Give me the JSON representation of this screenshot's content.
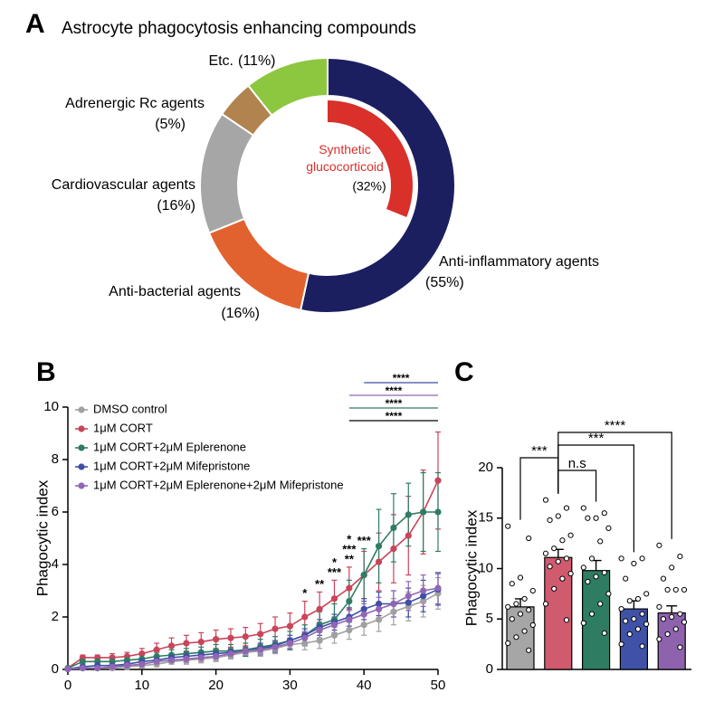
{
  "chart_data": [
    {
      "type": "donut",
      "panel": "A",
      "title": "Astrocyte phagocytosis enhancing compounds",
      "categories": [
        "Anti-inflammatory agents",
        "Anti-bacterial agents",
        "Cardiovascular agents",
        "Adrenergic Rc agents",
        "Etc."
      ],
      "values": [
        55,
        16,
        16,
        5,
        11
      ],
      "value_labels": [
        "(55%)",
        "(16%)",
        "(16%)",
        "(5%)",
        "(11%)"
      ],
      "colors": [
        "#1b1f5f",
        "#e2622f",
        "#a6a6a6",
        "#b0834f",
        "#8dc63f"
      ],
      "label_colors": [
        "#1b1f5f",
        "#e0502f",
        "#000000",
        "#7a4f22",
        "#2f9e55"
      ],
      "inner": {
        "categories": [
          "Synthetic glucocorticoid"
        ],
        "values": [
          32
        ],
        "value_labels": [
          "(32%)"
        ],
        "colors": [
          "#d9302a"
        ]
      }
    },
    {
      "type": "line",
      "panel": "B",
      "y_label": "Phagocytic index",
      "x": [
        0,
        2,
        4,
        6,
        8,
        10,
        12,
        14,
        16,
        18,
        20,
        22,
        24,
        26,
        28,
        30,
        32,
        34,
        36,
        38,
        40,
        42,
        44,
        46,
        48,
        50
      ],
      "series": [
        {
          "name": "DMSO control",
          "color": "#a0a0a0",
          "values": [
            0.02,
            0.05,
            0.05,
            0.05,
            0.1,
            0.15,
            0.2,
            0.3,
            0.35,
            0.4,
            0.45,
            0.55,
            0.65,
            0.7,
            0.8,
            0.95,
            1.0,
            1.1,
            1.3,
            1.5,
            1.7,
            1.9,
            2.2,
            2.4,
            2.6,
            2.9
          ],
          "errors": [
            0.02,
            0.05,
            0.05,
            0.05,
            0.1,
            0.1,
            0.1,
            0.1,
            0.15,
            0.15,
            0.15,
            0.15,
            0.15,
            0.2,
            0.2,
            0.2,
            0.25,
            0.3,
            0.3,
            0.35,
            0.4,
            0.45,
            0.5,
            0.55,
            0.6,
            0.6
          ]
        },
        {
          "name": "1μM CORT",
          "color": "#c8455a",
          "values": [
            0.05,
            0.45,
            0.45,
            0.45,
            0.5,
            0.6,
            0.75,
            0.9,
            1.0,
            1.05,
            1.15,
            1.2,
            1.25,
            1.35,
            1.55,
            1.65,
            2.0,
            2.3,
            2.7,
            3.1,
            3.6,
            4.1,
            4.6,
            5.1,
            6.0,
            7.2
          ],
          "errors": [
            0.05,
            0.1,
            0.1,
            0.15,
            0.15,
            0.2,
            0.25,
            0.3,
            0.3,
            0.35,
            0.35,
            0.35,
            0.35,
            0.4,
            0.45,
            0.5,
            0.6,
            0.65,
            0.7,
            0.8,
            0.9,
            1.1,
            1.3,
            1.5,
            1.6,
            1.85
          ]
        },
        {
          "name": "1μM CORT+2μM Eplerenone",
          "color": "#2e7d63",
          "values": [
            0.05,
            0.3,
            0.3,
            0.3,
            0.35,
            0.4,
            0.5,
            0.55,
            0.6,
            0.65,
            0.7,
            0.7,
            0.75,
            0.85,
            0.95,
            1.1,
            1.3,
            1.7,
            1.9,
            2.6,
            3.6,
            4.7,
            5.4,
            5.9,
            6.0,
            6.0
          ],
          "errors": [
            0.05,
            0.1,
            0.1,
            0.1,
            0.15,
            0.15,
            0.15,
            0.2,
            0.2,
            0.2,
            0.25,
            0.25,
            0.25,
            0.3,
            0.3,
            0.35,
            0.4,
            0.5,
            0.6,
            0.8,
            1.0,
            1.4,
            1.3,
            1.2,
            1.5,
            1.5
          ]
        },
        {
          "name": "1μM CORT+2μM Mifepristone",
          "color": "#3f4fa6",
          "values": [
            0.02,
            0.1,
            0.15,
            0.15,
            0.2,
            0.3,
            0.35,
            0.45,
            0.5,
            0.55,
            0.6,
            0.65,
            0.7,
            0.8,
            0.9,
            1.1,
            1.3,
            1.6,
            1.8,
            2.0,
            2.3,
            2.5,
            2.5,
            2.55,
            2.8,
            3.05
          ],
          "errors": [
            0.02,
            0.05,
            0.05,
            0.05,
            0.1,
            0.1,
            0.1,
            0.1,
            0.15,
            0.15,
            0.15,
            0.15,
            0.15,
            0.2,
            0.2,
            0.2,
            0.25,
            0.3,
            0.3,
            0.35,
            0.4,
            0.45,
            0.5,
            0.55,
            0.6,
            0.6
          ]
        },
        {
          "name": "1μM CORT+2μM Eplerenone+2μM Mifepristone",
          "color": "#9066b5",
          "values": [
            0.02,
            0.05,
            0.05,
            0.1,
            0.15,
            0.2,
            0.3,
            0.35,
            0.4,
            0.45,
            0.5,
            0.6,
            0.7,
            0.75,
            0.85,
            1.0,
            1.2,
            1.5,
            1.7,
            1.9,
            2.1,
            2.3,
            2.5,
            2.8,
            3.0,
            3.1
          ],
          "errors": [
            0.02,
            0.05,
            0.05,
            0.05,
            0.1,
            0.1,
            0.1,
            0.1,
            0.15,
            0.15,
            0.15,
            0.15,
            0.15,
            0.2,
            0.2,
            0.2,
            0.25,
            0.3,
            0.3,
            0.35,
            0.4,
            0.45,
            0.5,
            0.55,
            0.6,
            0.6
          ]
        }
      ],
      "xlim": [
        0,
        50
      ],
      "ylim": [
        0,
        10
      ],
      "xticks": [
        0,
        10,
        20,
        30,
        40,
        50
      ],
      "yticks": [
        0,
        2,
        4,
        6,
        8,
        10
      ],
      "legend": "upper left",
      "annotations": [
        {
          "text": "*",
          "x": 32,
          "color": "#000000"
        },
        {
          "text": "**",
          "x": 34,
          "color": "#000000"
        },
        {
          "text": "***",
          "x": 36,
          "color": "#000000"
        },
        {
          "text": "*",
          "x": 36,
          "color": "#9066b5"
        },
        {
          "text": "**",
          "x": 38,
          "color": "#2e7d63"
        },
        {
          "text": "***",
          "x": 38,
          "color": "#9066b5"
        },
        {
          "text": "*",
          "x": 38,
          "color": "#3f4fa6"
        },
        {
          "text": "***",
          "x": 40,
          "color": "#3f4fa6"
        }
      ],
      "brackets": [
        {
          "x": [
            38,
            50
          ],
          "text": "****",
          "color": "#000000"
        },
        {
          "x": [
            38,
            50
          ],
          "text": "****",
          "color": "#2e7d63"
        },
        {
          "x": [
            38,
            50
          ],
          "text": "****",
          "color": "#9066b5"
        },
        {
          "x": [
            40,
            50
          ],
          "text": "****",
          "color": "#3f4fa6"
        }
      ]
    },
    {
      "type": "bar",
      "panel": "C",
      "y_label": "Phagocytic index",
      "categories": [
        null,
        null,
        null,
        null,
        null
      ],
      "values": [
        6.2,
        11.1,
        9.8,
        6.0,
        5.6
      ],
      "errors": [
        0.8,
        0.8,
        1.0,
        0.8,
        0.7
      ],
      "colors": [
        "#a6a6a6",
        "#d05a6e",
        "#2e7d63",
        "#3f52a7",
        "#8e62ad"
      ],
      "points": [
        [
          14.2,
          13.0,
          9.1,
          8.5,
          7.8,
          7.0,
          6.5,
          6.2,
          5.9,
          5.5,
          5.0,
          4.4,
          3.8,
          3.2,
          2.6,
          1.9
        ],
        [
          16.8,
          16.0,
          15.2,
          14.8,
          13.3,
          12.8,
          12.0,
          11.5,
          11.0,
          10.7,
          10.2,
          9.5,
          9.0,
          8.0,
          6.5,
          4.9
        ],
        [
          16.0,
          15.5,
          15.0,
          15.0,
          14.0,
          12.7,
          11.0,
          10.1,
          9.6,
          9.2,
          8.7,
          7.5,
          6.5,
          5.5,
          4.6,
          3.6
        ],
        [
          11.0,
          11.0,
          10.5,
          9.0,
          7.5,
          7.0,
          6.8,
          6.0,
          5.5,
          5.0,
          4.8,
          4.5,
          4.0,
          3.5,
          2.5,
          2.3
        ],
        [
          12.3,
          11.2,
          10.1,
          9.0,
          7.9,
          7.9,
          7.9,
          6.2,
          5.5,
          5.2,
          5.0,
          4.7,
          4.0,
          3.5,
          3.0,
          2.2
        ]
      ],
      "ylim": [
        0,
        20
      ],
      "yticks": [
        0,
        5,
        10,
        15,
        20
      ],
      "brackets": [
        {
          "from": 1,
          "to": 2,
          "text": "n.s"
        },
        {
          "from": 0,
          "to": 1,
          "text": "***"
        },
        {
          "from": 1,
          "to": 3,
          "text": "***"
        },
        {
          "from": 1,
          "to": 4,
          "text": "****"
        }
      ]
    }
  ]
}
